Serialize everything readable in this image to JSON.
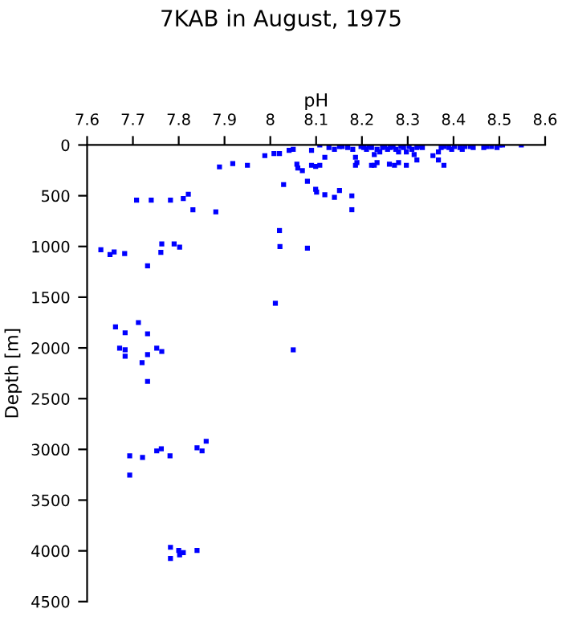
{
  "chart_data": {
    "type": "scatter",
    "title": "7KAB in August, 1975",
    "xlabel": "pH",
    "ylabel": "Depth [m]",
    "xlim": [
      7.6,
      8.6
    ],
    "xticks": [
      7.6,
      7.7,
      7.8,
      7.9,
      8,
      8.1,
      8.2,
      8.3,
      8.4,
      8.5,
      8.6
    ],
    "ylim": [
      4500,
      0
    ],
    "yticks": [
      0,
      500,
      1000,
      1500,
      2000,
      2500,
      3000,
      3500,
      4000,
      4500
    ],
    "grid": false,
    "legend": false,
    "marker": "square",
    "series": [
      {
        "color": "#0000ff",
        "x": [
          8.108,
          8.09,
          8.128,
          8.119,
          8.14,
          8.151,
          8.157,
          8.169,
          8.18,
          8.186,
          8.198,
          8.204,
          8.21,
          8.215,
          8.221,
          8.227,
          8.233,
          8.239,
          8.245,
          8.25,
          8.256,
          8.262,
          8.268,
          8.274,
          8.28,
          8.285,
          8.291,
          8.297,
          8.303,
          8.309,
          8.314,
          8.32,
          8.326,
          8.332,
          8.355,
          8.367,
          8.373,
          8.379,
          8.39,
          8.396,
          8.402,
          8.414,
          8.419,
          8.425,
          8.437,
          8.443,
          8.466,
          8.472,
          8.483,
          8.495,
          8.501,
          8.507,
          8.548,
          8.186,
          8.189,
          8.221,
          8.227,
          8.233,
          8.26,
          8.271,
          8.28,
          8.297,
          8.32,
          8.379,
          8.367,
          8.09,
          8.099,
          8.108,
          8.058,
          8.06,
          8.07,
          8.081,
          8.029,
          8.099,
          8.101,
          8.119,
          8.14,
          8.151,
          8.178,
          8.178,
          8.02,
          8.021,
          8.081,
          7.988,
          8.008,
          8.02,
          8.041,
          8.05,
          7.889,
          7.918,
          7.95,
          7.708,
          7.74,
          7.782,
          7.81,
          7.821,
          7.831,
          7.881,
          7.63,
          7.65,
          7.659,
          7.682,
          7.732,
          7.761,
          7.763,
          7.79,
          7.802,
          8.011,
          7.662,
          7.712,
          7.683,
          7.732,
          7.671,
          7.683,
          7.683,
          7.732,
          7.752,
          7.763,
          7.72,
          7.732,
          8.05,
          7.693,
          7.693,
          7.721,
          7.752,
          7.762,
          7.781,
          7.84,
          7.851,
          7.86,
          7.782,
          7.782,
          7.8,
          7.802,
          7.81,
          7.84
        ],
        "values": [
          0,
          53,
          26,
          121,
          42,
          16,
          16,
          26,
          42,
          121,
          16,
          26,
          42,
          16,
          26,
          95,
          42,
          69,
          26,
          16,
          42,
          26,
          16,
          42,
          69,
          16,
          26,
          69,
          16,
          42,
          95,
          26,
          16,
          26,
          105,
          69,
          26,
          16,
          26,
          42,
          16,
          26,
          42,
          16,
          16,
          26,
          26,
          16,
          16,
          26,
          0,
          0,
          0,
          200,
          174,
          200,
          200,
          174,
          190,
          200,
          174,
          200,
          148,
          200,
          148,
          200,
          211,
          200,
          190,
          227,
          253,
          358,
          390,
          437,
          464,
          490,
          516,
          448,
          501,
          638,
          843,
          1001,
          1017,
          105,
          84,
          84,
          53,
          42,
          216,
          184,
          200,
          543,
          543,
          543,
          527,
          485,
          638,
          659,
          1033,
          1080,
          1054,
          1070,
          1191,
          1059,
          975,
          975,
          1007,
          1560,
          1792,
          1750,
          1851,
          1861,
          2003,
          2019,
          2082,
          2066,
          2003,
          2035,
          2145,
          2330,
          2019,
          3063,
          3253,
          3079,
          3015,
          2995,
          3063,
          2984,
          3015,
          2920,
          3965,
          4075,
          3996,
          4039,
          4018,
          3996
        ]
      }
    ]
  }
}
